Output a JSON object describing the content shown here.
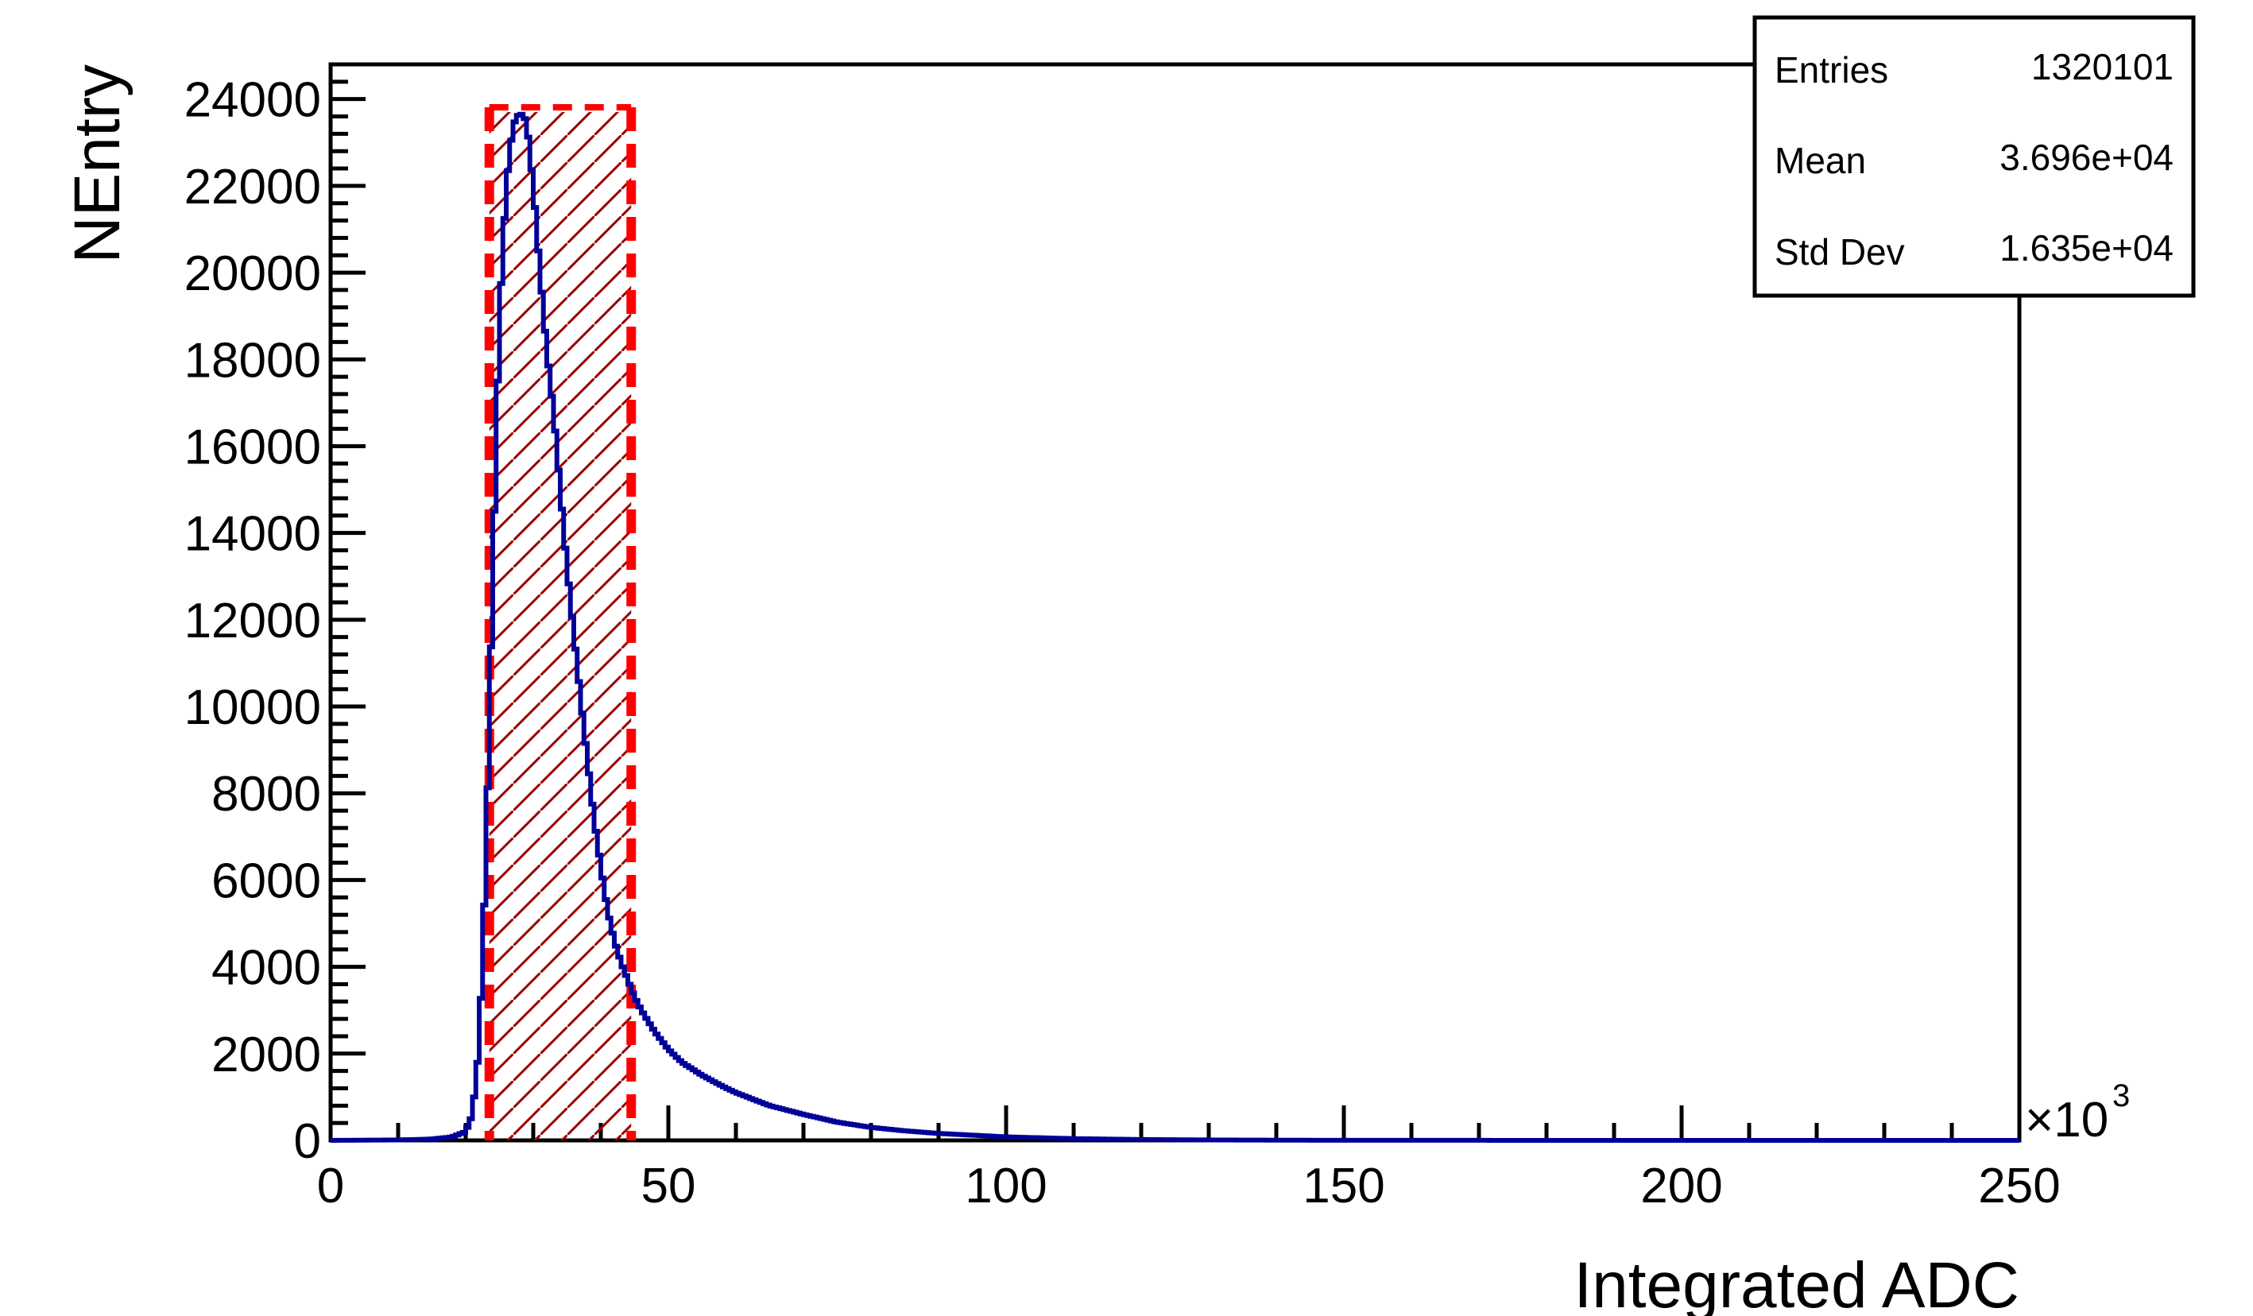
{
  "chart_data": {
    "type": "histogram",
    "xlabel": "Integrated ADC",
    "ylabel": "NEntry",
    "x_multiplier_label": "×10",
    "x_multiplier_exponent": "3",
    "xlim": [
      0,
      250
    ],
    "ylim": [
      0,
      24800
    ],
    "x_ticks": [
      0,
      50,
      100,
      150,
      200,
      250
    ],
    "x_tick_labels": [
      "0",
      "50",
      "100",
      "150",
      "200",
      "250"
    ],
    "y_ticks": [
      0,
      2000,
      4000,
      6000,
      8000,
      10000,
      12000,
      14000,
      16000,
      18000,
      20000,
      22000,
      24000
    ],
    "y_tick_labels": [
      "0",
      "2000",
      "4000",
      "6000",
      "8000",
      "10000",
      "12000",
      "14000",
      "16000",
      "18000",
      "20000",
      "22000",
      "24000"
    ],
    "series": [
      {
        "color": "#000099",
        "x": [
          0,
          10,
          15,
          18,
          20,
          21,
          22,
          23,
          24,
          25,
          26,
          27,
          28,
          29,
          30,
          31,
          32,
          33,
          34,
          35,
          36,
          37,
          38,
          39,
          40,
          41,
          42,
          43,
          44,
          45,
          46,
          48,
          50,
          52,
          55,
          58,
          60,
          65,
          70,
          75,
          80,
          85,
          90,
          95,
          100,
          110,
          120,
          130,
          140,
          150,
          200,
          250
        ],
        "y": [
          0,
          10,
          30,
          80,
          200,
          600,
          2200,
          6500,
          13000,
          19000,
          22000,
          23400,
          23700,
          23500,
          22000,
          20000,
          18200,
          16800,
          15000,
          13200,
          11700,
          10200,
          8800,
          7400,
          6300,
          5300,
          4600,
          4100,
          3700,
          3300,
          3000,
          2500,
          2100,
          1800,
          1500,
          1250,
          1100,
          800,
          600,
          420,
          300,
          220,
          160,
          120,
          80,
          40,
          20,
          10,
          5,
          2,
          0,
          0
        ]
      }
    ],
    "selection": {
      "x_min": 23.5,
      "x_max": 44.5,
      "color": "#ff0000",
      "hatch_color": "#990000"
    },
    "stats": {
      "entries_label": "Entries",
      "entries_value": "1320101",
      "mean_label": "Mean",
      "mean_value": "3.696e+04",
      "std_label": "Std Dev",
      "std_value": "1.635e+04"
    }
  }
}
